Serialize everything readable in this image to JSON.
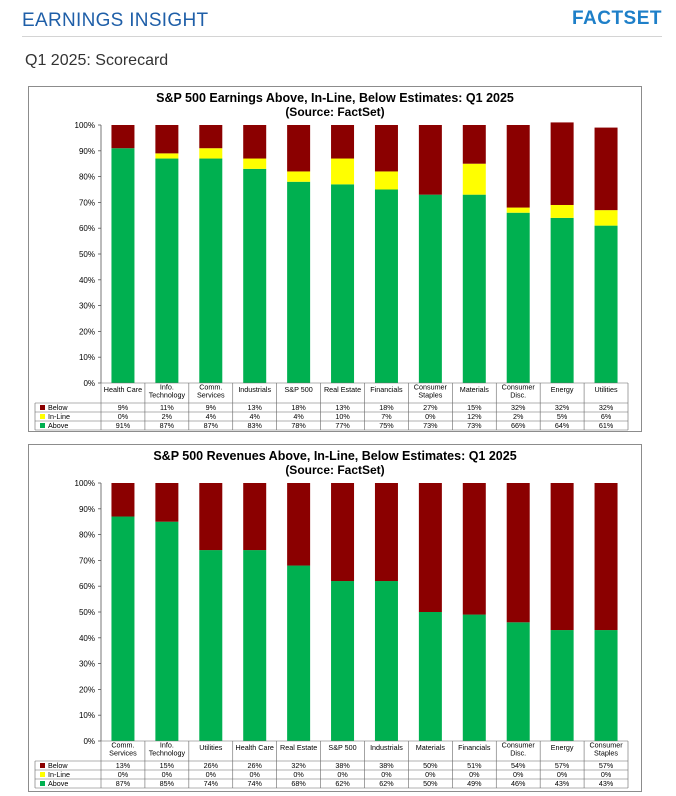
{
  "header": {
    "title": "EARNINGS INSIGHT",
    "logo": "FACTSET"
  },
  "page_subtitle": "Q1 2025: Scorecard",
  "colors": {
    "below": "#8b0000",
    "inline": "#ffff00",
    "above": "#00b050",
    "accent": "#1f5fa8"
  },
  "chart_data": [
    {
      "type": "bar",
      "stacked": true,
      "title": "S&P 500 Earnings Above, In-Line, Below Estimates: Q1 2025",
      "subtitle": "(Source: FactSet)",
      "ylim": [
        0,
        100
      ],
      "yticks": [
        "0%",
        "10%",
        "20%",
        "30%",
        "40%",
        "50%",
        "60%",
        "70%",
        "80%",
        "90%",
        "100%"
      ],
      "grid": false,
      "categories": [
        [
          "Health Care"
        ],
        [
          "Info.",
          "Technology"
        ],
        [
          "Comm.",
          "Services"
        ],
        [
          "Industrials"
        ],
        [
          "S&P 500"
        ],
        [
          "Real Estate"
        ],
        [
          "Financials"
        ],
        [
          "Consumer",
          "Staples"
        ],
        [
          "Materials"
        ],
        [
          "Consumer",
          "Disc."
        ],
        [
          "Energy"
        ],
        [
          "Utilities"
        ]
      ],
      "series": [
        {
          "name": "Below",
          "values": [
            9,
            11,
            9,
            13,
            18,
            13,
            18,
            27,
            15,
            32,
            32,
            32
          ]
        },
        {
          "name": "In-Line",
          "values": [
            0,
            2,
            4,
            4,
            4,
            10,
            7,
            0,
            12,
            2,
            5,
            6
          ]
        },
        {
          "name": "Above",
          "values": [
            91,
            87,
            87,
            83,
            78,
            77,
            75,
            73,
            73,
            66,
            64,
            61
          ]
        }
      ]
    },
    {
      "type": "bar",
      "stacked": true,
      "title": "S&P 500 Revenues Above, In-Line, Below Estimates: Q1 2025",
      "subtitle": "(Source: FactSet)",
      "ylim": [
        0,
        100
      ],
      "yticks": [
        "0%",
        "10%",
        "20%",
        "30%",
        "40%",
        "50%",
        "60%",
        "70%",
        "80%",
        "90%",
        "100%"
      ],
      "grid": false,
      "categories": [
        [
          "Comm.",
          "Services"
        ],
        [
          "Info.",
          "Technology"
        ],
        [
          "Utilities"
        ],
        [
          "Health Care"
        ],
        [
          "Real Estate"
        ],
        [
          "S&P 500"
        ],
        [
          "Industrials"
        ],
        [
          "Materials"
        ],
        [
          "Financials"
        ],
        [
          "Consumer",
          "Disc."
        ],
        [
          "Energy"
        ],
        [
          "Consumer",
          "Staples"
        ]
      ],
      "series": [
        {
          "name": "Below",
          "values": [
            13,
            15,
            26,
            26,
            32,
            38,
            38,
            50,
            51,
            54,
            57,
            57
          ]
        },
        {
          "name": "In-Line",
          "values": [
            0,
            0,
            0,
            0,
            0,
            0,
            0,
            0,
            0,
            0,
            0,
            0
          ]
        },
        {
          "name": "Above",
          "values": [
            87,
            85,
            74,
            74,
            68,
            62,
            62,
            50,
            49,
            46,
            43,
            43
          ]
        }
      ]
    }
  ]
}
